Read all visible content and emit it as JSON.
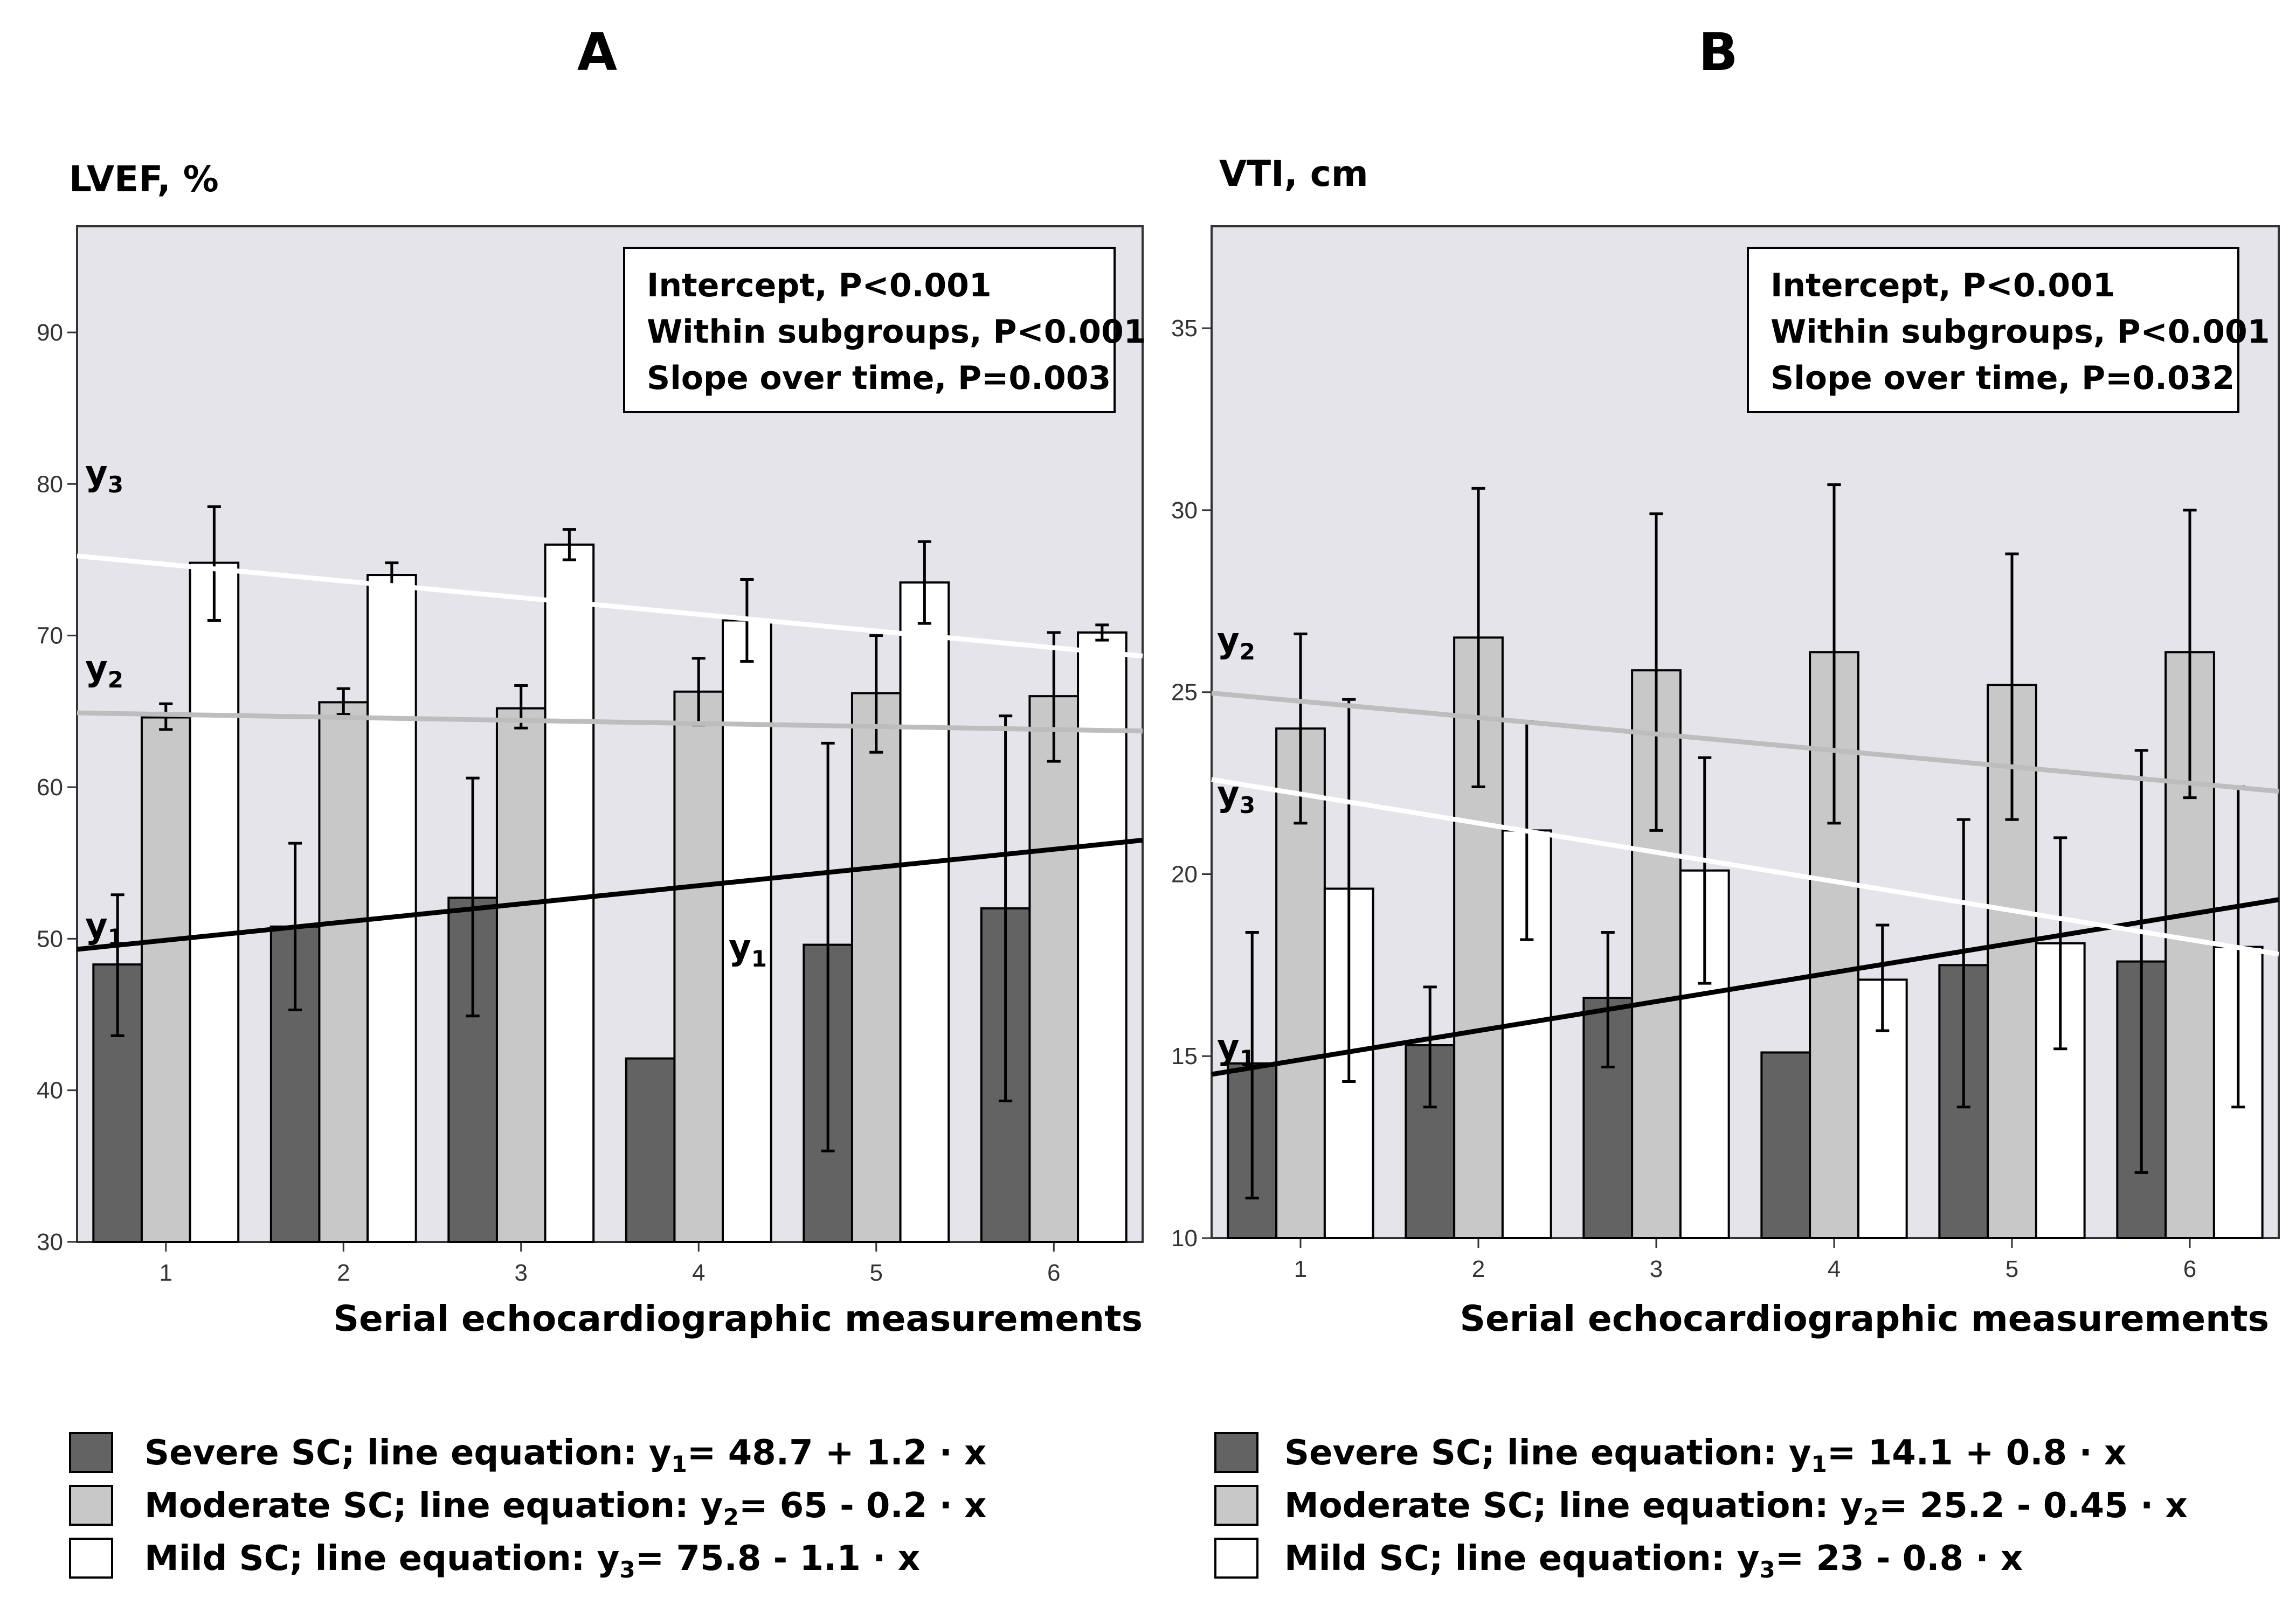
{
  "chart_data": [
    {
      "panel": "A",
      "type": "bar",
      "ylabel": "LVEF, %",
      "xlabel": "Serial echocardiographic measurements",
      "categories": [
        "1",
        "2",
        "3",
        "4",
        "5",
        "6"
      ],
      "ylim": [
        30,
        97
      ],
      "yticks": [
        30,
        40,
        50,
        60,
        70,
        80,
        90
      ],
      "series": [
        {
          "name": "Severe SC",
          "color": "#636363",
          "values": [
            48.3,
            50.8,
            52.7,
            42.1,
            49.6,
            52.0
          ],
          "errors": [
            [
              43.6,
              52.9
            ],
            [
              45.3,
              56.3
            ],
            [
              44.9,
              60.6
            ],
            [
              42.1,
              42.1
            ],
            [
              36.0,
              62.9
            ],
            [
              39.3,
              64.7
            ]
          ]
        },
        {
          "name": "Moderate SC",
          "color": "#c8c8c8",
          "values": [
            64.6,
            65.6,
            65.2,
            66.3,
            66.2,
            66.0
          ],
          "errors": [
            [
              63.8,
              65.5
            ],
            [
              64.8,
              66.5
            ],
            [
              63.9,
              66.7
            ],
            [
              64.1,
              68.5
            ],
            [
              62.3,
              70.0
            ],
            [
              61.7,
              70.2
            ]
          ]
        },
        {
          "name": "Mild SC",
          "color": "#ffffff",
          "values": [
            74.8,
            74.0,
            76.0,
            71.0,
            73.5,
            70.2
          ],
          "errors": [
            [
              71.0,
              78.5
            ],
            [
              73.3,
              74.8
            ],
            [
              75.0,
              77.0
            ],
            [
              68.3,
              73.7
            ],
            [
              70.8,
              76.2
            ],
            [
              69.7,
              70.7
            ]
          ]
        }
      ],
      "regression_lines": [
        {
          "name": "y1",
          "intercept": 48.7,
          "slope": 1.2,
          "color": "#000000"
        },
        {
          "name": "y2",
          "intercept": 65,
          "slope": -0.2,
          "color": "#bdbdbd"
        },
        {
          "name": "y3",
          "intercept": 75.8,
          "slope": -1.1,
          "color": "#ffffff"
        }
      ],
      "line_labels": [
        {
          "base": "y",
          "sub": "3"
        },
        {
          "base": "y",
          "sub": "2"
        },
        {
          "base": "y",
          "sub": "1"
        },
        {
          "base": "y",
          "sub": "1"
        }
      ],
      "stats": [
        "Intercept, P<0.001",
        "Within subgroups, P<0.001",
        "Slope over time, P=0.003"
      ],
      "legend": [
        {
          "text": "Severe SC; line equation: y",
          "sub": "1",
          "after": "= 48.7 + 1.2 · x"
        },
        {
          "text": "Moderate SC; line equation: y",
          "sub": "2",
          "after": "= 65 - 0.2 · x"
        },
        {
          "text": "Mild SC; line equation: y",
          "sub": "3",
          "after": "= 75.8 - 1.1 · x"
        }
      ]
    },
    {
      "panel": "B",
      "type": "bar",
      "ylabel": "VTI, cm",
      "xlabel": "Serial echocardiographic measurements",
      "categories": [
        "1",
        "2",
        "3",
        "4",
        "5",
        "6"
      ],
      "ylim": [
        10,
        37.8
      ],
      "yticks": [
        10,
        15,
        20,
        25,
        30,
        35
      ],
      "series": [
        {
          "name": "Severe SC",
          "color": "#636363",
          "values": [
            14.8,
            15.3,
            16.6,
            15.1,
            17.5,
            17.6
          ],
          "errors": [
            [
              11.1,
              18.4
            ],
            [
              13.6,
              16.9
            ],
            [
              14.7,
              18.4
            ],
            [
              15.1,
              15.1
            ],
            [
              13.6,
              21.5
            ],
            [
              11.8,
              23.4
            ]
          ]
        },
        {
          "name": "Moderate SC",
          "color": "#c8c8c8",
          "values": [
            24.0,
            26.5,
            25.6,
            26.1,
            25.2,
            26.1
          ],
          "errors": [
            [
              21.4,
              26.6
            ],
            [
              22.4,
              30.6
            ],
            [
              21.2,
              29.9
            ],
            [
              21.4,
              30.7
            ],
            [
              21.5,
              28.8
            ],
            [
              22.1,
              30.0
            ]
          ]
        },
        {
          "name": "Mild SC",
          "color": "#ffffff",
          "values": [
            19.6,
            21.2,
            20.1,
            17.1,
            18.1,
            18.0
          ],
          "errors": [
            [
              14.3,
              24.8
            ],
            [
              18.2,
              24.2
            ],
            [
              17.0,
              23.2
            ],
            [
              15.7,
              18.6
            ],
            [
              15.2,
              21.0
            ],
            [
              13.6,
              22.4
            ]
          ]
        }
      ],
      "regression_lines": [
        {
          "name": "y1",
          "intercept": 14.1,
          "slope": 0.8,
          "color": "#000000"
        },
        {
          "name": "y2",
          "intercept": 25.2,
          "slope": -0.45,
          "color": "#bdbdbd"
        },
        {
          "name": "y3",
          "intercept": 23,
          "slope": -0.8,
          "color": "#ffffff"
        }
      ],
      "line_labels": [
        {
          "base": "y",
          "sub": "2"
        },
        {
          "base": "y",
          "sub": "3"
        },
        {
          "base": "y",
          "sub": "1"
        }
      ],
      "stats": [
        "Intercept, P<0.001",
        "Within subgroups, P<0.001",
        "Slope over time, P=0.032"
      ],
      "legend": [
        {
          "text": "Severe SC; line equation: y",
          "sub": "1",
          "after": "= 14.1 + 0.8 · x"
        },
        {
          "text": "Moderate SC; line equation: y",
          "sub": "2",
          "after": "= 25.2 - 0.45 · x"
        },
        {
          "text": "Mild SC; line equation: y",
          "sub": "3",
          "after": "= 23 - 0.8 · x"
        }
      ]
    }
  ]
}
